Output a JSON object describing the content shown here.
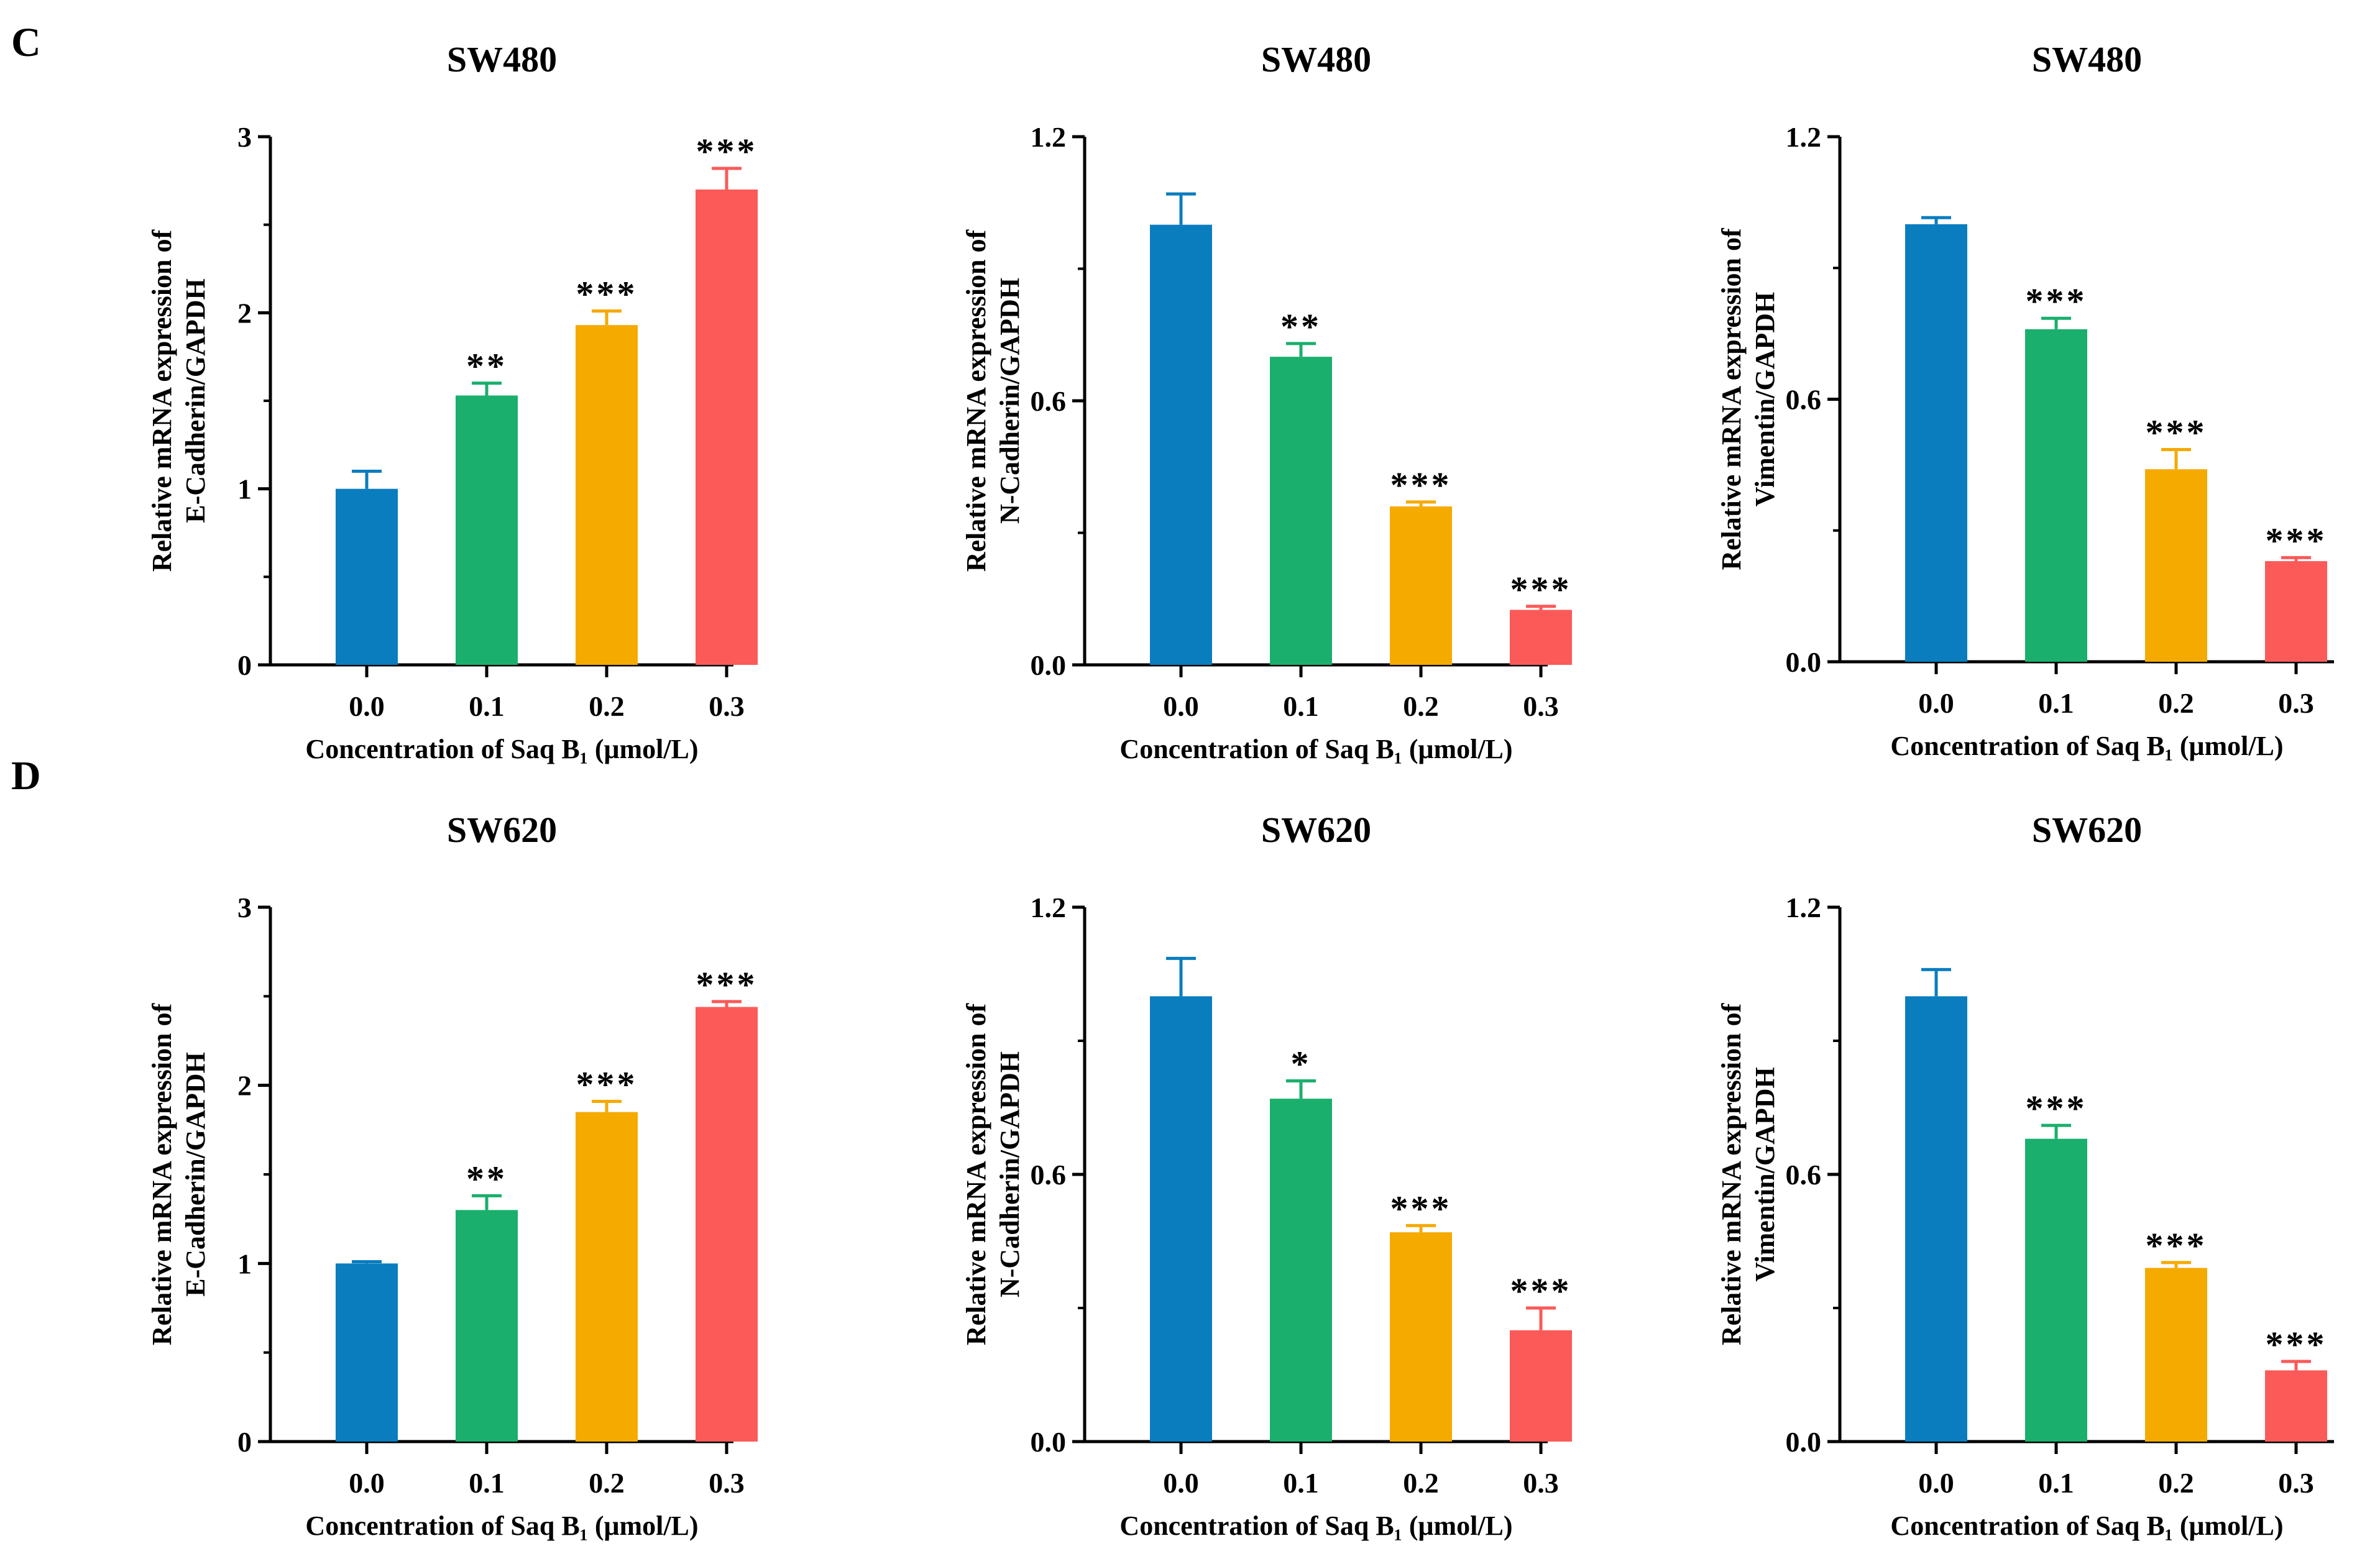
{
  "panel_labels": [
    "C",
    "D"
  ],
  "chart_data": [
    {
      "type": "bar",
      "panel": "C",
      "title": "SW480",
      "categories": [
        "0.0",
        "0.1",
        "0.2",
        "0.3"
      ],
      "values": [
        1.0,
        1.53,
        1.93,
        2.7
      ],
      "errors": [
        0.1,
        0.07,
        0.08,
        0.12
      ],
      "significance": [
        "",
        "**",
        "***",
        "***"
      ],
      "ylabel": [
        "Relative mRNA expression of",
        "E-Cadherin/GAPDH"
      ],
      "xlabel": "Concentration of Saq B₁  (μmol/L)",
      "ylim": [
        0,
        3
      ],
      "yticks": [
        "0",
        "1",
        "2",
        "3"
      ],
      "ytick_values": [
        0,
        1,
        2,
        3
      ],
      "colors": [
        "#0a7dbf",
        "#1aaf6c",
        "#f5aa00",
        "#fb5a58"
      ]
    },
    {
      "type": "bar",
      "panel": "C",
      "title": "SW480",
      "categories": [
        "0.0",
        "0.1",
        "0.2",
        "0.3"
      ],
      "values": [
        1.0,
        0.7,
        0.36,
        0.125
      ],
      "errors": [
        0.07,
        0.03,
        0.01,
        0.008
      ],
      "significance": [
        "",
        "**",
        "***",
        "***"
      ],
      "ylabel": [
        "Relative mRNA expression of",
        "N-Cadherin/GAPDH"
      ],
      "xlabel": "Concentration of Saq B₁  (μmol/L)",
      "ylim": [
        0,
        1.2
      ],
      "yticks": [
        "0.0",
        "0.6",
        "1.2"
      ],
      "ytick_values": [
        0,
        0.6,
        1.2
      ],
      "colors": [
        "#0a7dbf",
        "#1aaf6c",
        "#f5aa00",
        "#fb5a58"
      ]
    },
    {
      "type": "bar",
      "panel": "C",
      "title": "SW480",
      "categories": [
        "0.0",
        "0.1",
        "0.2",
        "0.3"
      ],
      "values": [
        1.0,
        0.76,
        0.44,
        0.23
      ],
      "errors": [
        0.015,
        0.025,
        0.045,
        0.008
      ],
      "significance": [
        "",
        "***",
        "***",
        "***"
      ],
      "ylabel": [
        "Relative mRNA expression of",
        "Vimentin/GAPDH"
      ],
      "xlabel": "Concentration of Saq B₁  (μmol/L)",
      "ylim": [
        0,
        1.2
      ],
      "yticks": [
        "0.0",
        "0.6",
        "1.2"
      ],
      "ytick_values": [
        0,
        0.6,
        1.2
      ],
      "colors": [
        "#0a7dbf",
        "#1aaf6c",
        "#f5aa00",
        "#fb5a58"
      ]
    },
    {
      "type": "bar",
      "panel": "D",
      "title": "SW620",
      "categories": [
        "0.0",
        "0.1",
        "0.2",
        "0.3"
      ],
      "values": [
        1.0,
        1.3,
        1.85,
        2.44
      ],
      "errors": [
        0.01,
        0.08,
        0.06,
        0.03
      ],
      "significance": [
        "",
        "**",
        "***",
        "***"
      ],
      "ylabel": [
        "Relative mRNA expression of",
        "E-Cadherin/GAPDH"
      ],
      "xlabel": "Concentration of Saq B₁  (μmol/L)",
      "ylim": [
        0,
        3
      ],
      "yticks": [
        "0",
        "1",
        "2",
        "3"
      ],
      "ytick_values": [
        0,
        1,
        2,
        3
      ],
      "colors": [
        "#0a7dbf",
        "#1aaf6c",
        "#f5aa00",
        "#fb5a58"
      ]
    },
    {
      "type": "bar",
      "panel": "D",
      "title": "SW620",
      "categories": [
        "0.0",
        "0.1",
        "0.2",
        "0.3"
      ],
      "values": [
        1.0,
        0.77,
        0.47,
        0.25
      ],
      "errors": [
        0.085,
        0.04,
        0.015,
        0.05
      ],
      "significance": [
        "",
        "*",
        "***",
        "***"
      ],
      "ylabel": [
        "Relative mRNA expression of",
        "N-Cadherin/GAPDH"
      ],
      "xlabel": "Concentration of Saq B₁  (μmol/L)",
      "ylim": [
        0,
        1.2
      ],
      "yticks": [
        "0.0",
        "0.6",
        "1.2"
      ],
      "ytick_values": [
        0,
        0.6,
        1.2
      ],
      "colors": [
        "#0a7dbf",
        "#1aaf6c",
        "#f5aa00",
        "#fb5a58"
      ]
    },
    {
      "type": "bar",
      "panel": "D",
      "title": "SW620",
      "categories": [
        "0.0",
        "0.1",
        "0.2",
        "0.3"
      ],
      "values": [
        1.0,
        0.68,
        0.39,
        0.16
      ],
      "errors": [
        0.06,
        0.03,
        0.012,
        0.02
      ],
      "significance": [
        "",
        "***",
        "***",
        "***"
      ],
      "ylabel": [
        "Relative mRNA expression of",
        "Vimentin/GAPDH"
      ],
      "xlabel": "Concentration of Saq B₁  (μmol/L)",
      "ylim": [
        0,
        1.2
      ],
      "yticks": [
        "0.0",
        "0.6",
        "1.2"
      ],
      "ytick_values": [
        0,
        0.6,
        1.2
      ],
      "colors": [
        "#0a7dbf",
        "#1aaf6c",
        "#f5aa00",
        "#fb5a58"
      ]
    }
  ]
}
